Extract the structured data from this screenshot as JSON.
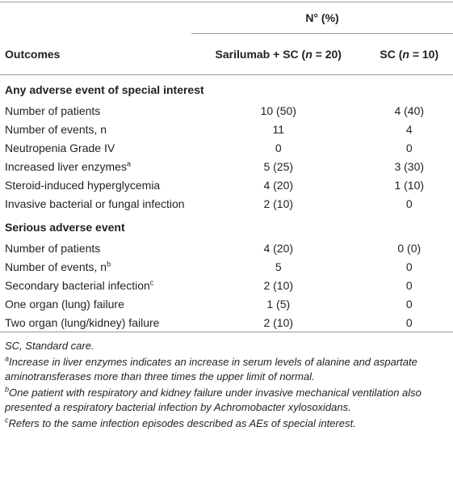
{
  "table": {
    "group_header": "N° (%)",
    "columns": [
      {
        "before": "Outcomes"
      },
      {
        "before": "Sarilumab + SC (",
        "italic": "n",
        "after": " = 20)"
      },
      {
        "before": "SC (",
        "italic": "n",
        "after": " = 10)"
      }
    ],
    "sections": [
      {
        "title": "Any adverse event of special interest",
        "rows": [
          {
            "label": "Number of patients",
            "values": [
              "10 (50)",
              "4 (40)"
            ]
          },
          {
            "label": "Number of events, n",
            "values": [
              "11",
              "4"
            ]
          },
          {
            "label": "Neutropenia Grade IV",
            "values": [
              "0",
              "0"
            ]
          },
          {
            "label": "Increased liver enzymes",
            "sup": "a",
            "values": [
              "5 (25)",
              "3 (30)"
            ]
          },
          {
            "label": "Steroid-induced hyperglycemia",
            "values": [
              "4 (20)",
              "1 (10)"
            ]
          },
          {
            "label": "Invasive bacterial or fungal infection",
            "values": [
              "2 (10)",
              "0"
            ]
          }
        ]
      },
      {
        "title": "Serious adverse event",
        "rows": [
          {
            "label": "Number of patients",
            "values": [
              "4 (20)",
              "0 (0)"
            ]
          },
          {
            "label": "Number of events, n",
            "sup": "b",
            "values": [
              "5",
              "0"
            ]
          },
          {
            "label": "Secondary bacterial infection",
            "sup": "c",
            "values": [
              "2 (10)",
              "0"
            ]
          },
          {
            "label": "One organ (lung) failure",
            "values": [
              "1 (5)",
              "0"
            ]
          },
          {
            "label": "Two organ (lung/kidney) failure",
            "values": [
              "2 (10)",
              "0"
            ]
          }
        ]
      }
    ]
  },
  "footnotes": {
    "abbreviation": "SC, Standard care.",
    "notes": [
      {
        "mark": "a",
        "text": "Increase in liver enzymes indicates an increase in serum levels of alanine and aspartate aminotransferases more than three times the upper limit of normal."
      },
      {
        "mark": "b",
        "text": "One patient with respiratory and kidney failure under invasive mechanical ventilation also presented a respiratory bacterial infection by Achromobacter xylosoxidans."
      },
      {
        "mark": "c",
        "text": "Refers to the same infection episodes described as AEs of special interest."
      }
    ]
  }
}
